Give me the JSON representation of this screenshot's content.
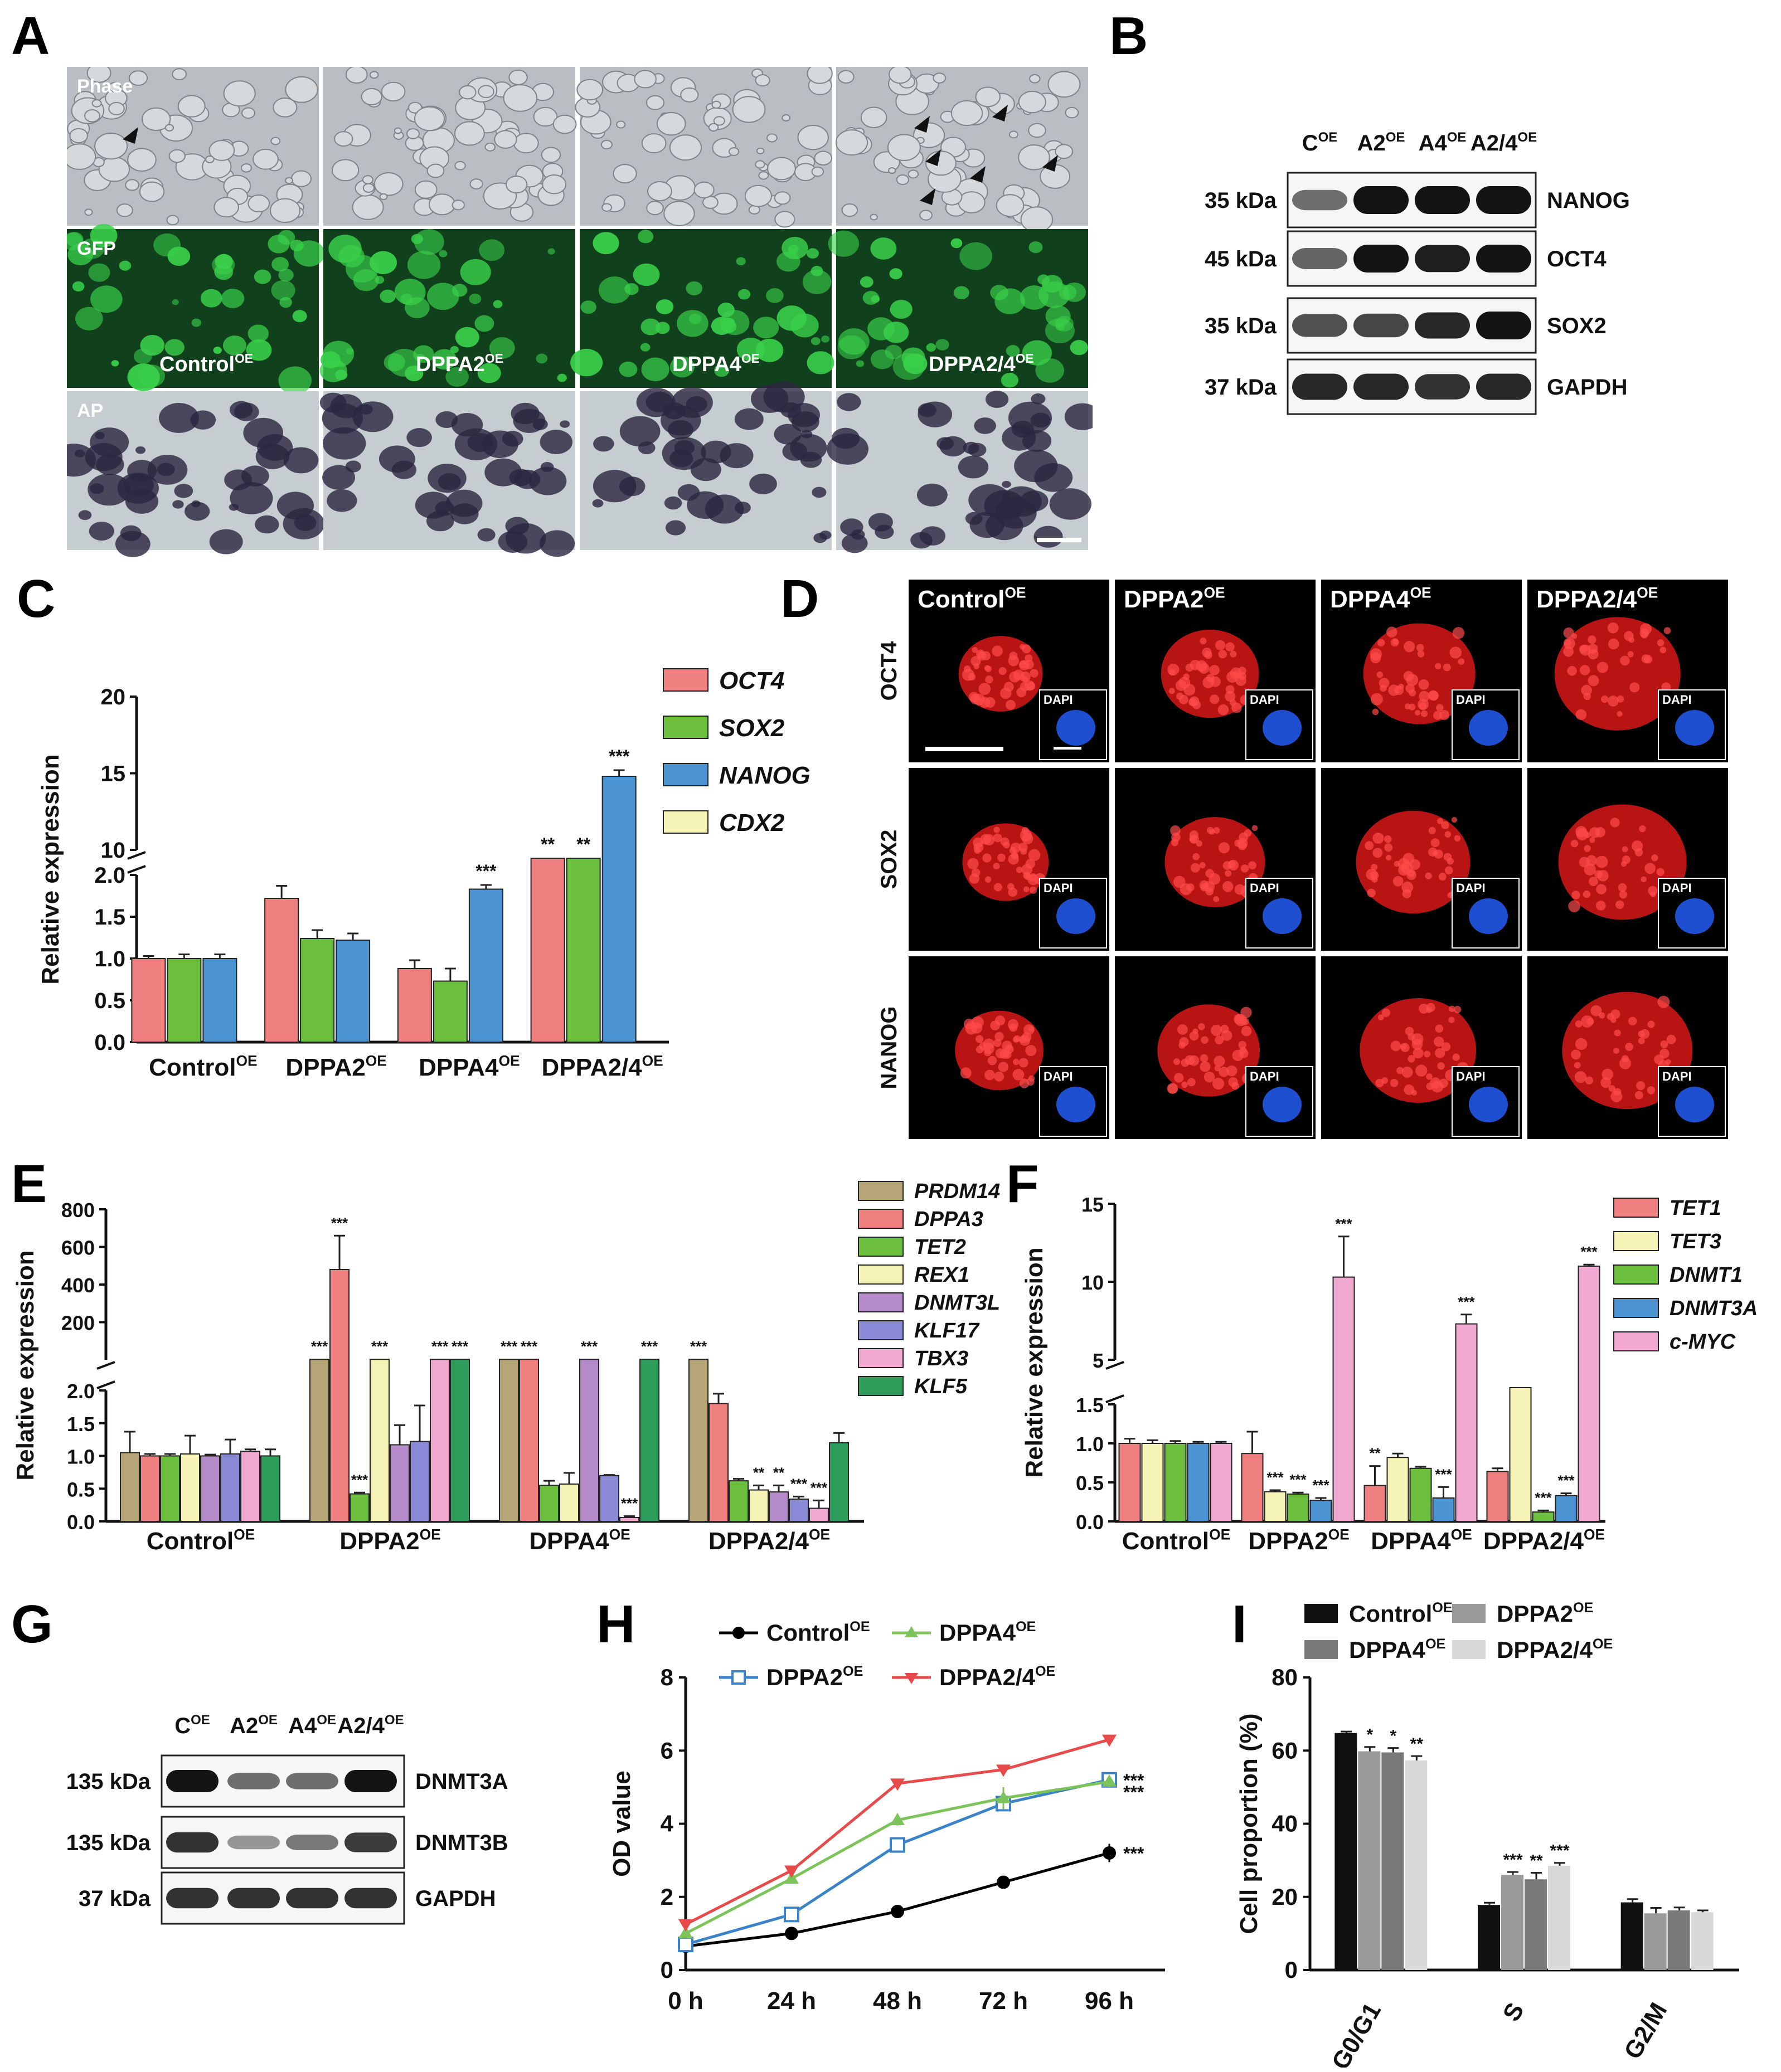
{
  "panel_letters": {
    "A": "A",
    "B": "B",
    "C": "C",
    "D": "D",
    "E": "E",
    "F": "F",
    "G": "G",
    "H": "H",
    "I": "I"
  },
  "panelA": {
    "row_labels": [
      "Phase",
      "GFP",
      "AP"
    ],
    "group_labels": [
      "Control",
      "DPPA2",
      "DPPA4",
      "DPPA2/4"
    ],
    "sup": "OE",
    "colors": {
      "phase": "#b9bec2",
      "gfp": "#10401c",
      "gfp_spot": "#39d04a",
      "ap": "#c6cdd0",
      "ap_spot": "#2b2540"
    }
  },
  "panelB": {
    "lanes": [
      {
        "base": "C",
        "sup": "OE"
      },
      {
        "base": "A2",
        "sup": "OE"
      },
      {
        "base": "A4",
        "sup": "OE"
      },
      {
        "base": "A2/4",
        "sup": "OE"
      }
    ],
    "rows": [
      {
        "kda": "35 kDa",
        "protein": "NANOG",
        "intensity": [
          0.55,
          1,
          1,
          1
        ]
      },
      {
        "kda": "45 kDa",
        "protein": "OCT4",
        "intensity": [
          0.6,
          1,
          0.95,
          1
        ]
      },
      {
        "kda": "35 kDa",
        "protein": "SOX2",
        "intensity": [
          0.7,
          0.75,
          0.9,
          1
        ]
      },
      {
        "kda": "37 kDa",
        "protein": "GAPDH",
        "intensity": [
          0.9,
          0.9,
          0.85,
          0.9
        ]
      }
    ]
  },
  "panelD": {
    "col_labels": [
      {
        "base": "Control",
        "sup": "OE"
      },
      {
        "base": "DPPA2",
        "sup": "OE"
      },
      {
        "base": "DPPA4",
        "sup": "OE"
      },
      {
        "base": "DPPA2/4",
        "sup": "OE"
      }
    ],
    "row_labels": [
      "OCT4",
      "SOX2",
      "NANOG"
    ],
    "inset_label": "DAPI"
  },
  "panelG": {
    "lanes": [
      {
        "base": "C",
        "sup": "OE"
      },
      {
        "base": "A2",
        "sup": "OE"
      },
      {
        "base": "A4",
        "sup": "OE"
      },
      {
        "base": "A2/4",
        "sup": "OE"
      }
    ],
    "rows": [
      {
        "kda": "135 kDa",
        "protein": "DNMT3A",
        "intensity": [
          1,
          0.55,
          0.55,
          1
        ]
      },
      {
        "kda": "135 kDa",
        "protein": "DNMT3B",
        "intensity": [
          0.85,
          0.35,
          0.5,
          0.8
        ]
      },
      {
        "kda": "37 kDa",
        "protein": "GAPDH",
        "intensity": [
          0.85,
          0.85,
          0.85,
          0.85
        ]
      }
    ]
  },
  "chart_data": [
    {
      "id": "C",
      "type": "bar",
      "ylabel": "Relative expression",
      "categories": [
        {
          "base": "Control",
          "sup": "OE"
        },
        {
          "base": "DPPA2",
          "sup": "OE"
        },
        {
          "base": "DPPA4",
          "sup": "OE"
        },
        {
          "base": "DPPA2/4",
          "sup": "OE"
        }
      ],
      "ylim_lower": [
        0,
        2.0
      ],
      "ylim_upper": [
        10,
        20
      ],
      "yticks_lower": [
        "0.0",
        "0.5",
        "1.0",
        "1.5",
        "2.0"
      ],
      "yticks_upper": [
        "10",
        "15",
        "20"
      ],
      "series": [
        {
          "name": "OCT4",
          "color": "#f08080",
          "values": [
            1.0,
            1.72,
            0.88,
            2.5
          ],
          "err": [
            0.03,
            0.15,
            0.1,
            0
          ],
          "sig": [
            "",
            "",
            "",
            "**"
          ]
        },
        {
          "name": "SOX2",
          "color": "#6cbf3c",
          "values": [
            1.0,
            1.24,
            0.73,
            2.5
          ],
          "err": [
            0.05,
            0.1,
            0.15,
            0
          ],
          "sig": [
            "",
            "",
            "",
            "**"
          ]
        },
        {
          "name": "NANOG",
          "color": "#4b93d1",
          "values": [
            1.0,
            1.22,
            1.83,
            14.8
          ],
          "err": [
            0.05,
            0.08,
            0.05,
            0.4
          ],
          "sig": [
            "",
            "",
            "***",
            "***"
          ]
        },
        {
          "name": "CDX2",
          "color": "#f5f3b5",
          "values": [
            null,
            null,
            null,
            null
          ],
          "err": [
            0,
            0,
            0,
            0
          ],
          "sig": [
            "",
            "",
            "",
            ""
          ]
        }
      ]
    },
    {
      "id": "E",
      "type": "bar",
      "ylabel": "Relative expression",
      "categories": [
        {
          "base": "Control",
          "sup": "OE"
        },
        {
          "base": "DPPA2",
          "sup": "OE"
        },
        {
          "base": "DPPA4",
          "sup": "OE"
        },
        {
          "base": "DPPA2/4",
          "sup": "OE"
        }
      ],
      "ylim_lower": [
        0,
        2.0
      ],
      "ylim_upper": [
        0,
        800
      ],
      "yticks_lower": [
        "0.0",
        "0.5",
        "1.0",
        "1.5",
        "2.0"
      ],
      "yticks_upper": [
        "200",
        "400",
        "600",
        "800"
      ],
      "series": [
        {
          "name": "PRDM14",
          "color": "#b5a577",
          "values": [
            1.05,
            2.5,
            2.5,
            2.5
          ],
          "err": [
            0.32,
            0,
            0,
            0
          ],
          "sig": [
            "",
            "***",
            "***",
            "***"
          ]
        },
        {
          "name": "DPPA3",
          "color": "#f08080",
          "values": [
            1.0,
            480,
            2.5,
            1.8
          ],
          "err": [
            0.03,
            180,
            0,
            0.15
          ],
          "sig": [
            "",
            "***",
            "***",
            ""
          ]
        },
        {
          "name": "TET2",
          "color": "#6cbf3c",
          "values": [
            1.0,
            0.42,
            0.55,
            0.62
          ],
          "err": [
            0.03,
            0.02,
            0.07,
            0.03
          ],
          "sig": [
            "",
            "***",
            "",
            ""
          ]
        },
        {
          "name": "REX1",
          "color": "#f5f3b5",
          "values": [
            1.03,
            2.5,
            0.57,
            0.48
          ],
          "err": [
            0.28,
            0,
            0.17,
            0.07
          ],
          "sig": [
            "",
            "***",
            "",
            "**"
          ]
        },
        {
          "name": "DNMT3L",
          "color": "#b48ac8",
          "values": [
            1.0,
            1.17,
            2.5,
            0.45
          ],
          "err": [
            0.02,
            0.3,
            0,
            0.1
          ],
          "sig": [
            "",
            "",
            "***",
            "**"
          ]
        },
        {
          "name": "KLF17",
          "color": "#8a8ad6",
          "values": [
            1.03,
            1.22,
            0.7,
            0.34
          ],
          "err": [
            0.22,
            0.55,
            0.01,
            0.04
          ],
          "sig": [
            "",
            "",
            "",
            "***"
          ]
        },
        {
          "name": "TBX3",
          "color": "#f0a8d0",
          "values": [
            1.07,
            2.5,
            0.06,
            0.2
          ],
          "err": [
            0.03,
            0,
            0.02,
            0.12
          ],
          "sig": [
            "",
            "***",
            "***",
            "***"
          ]
        },
        {
          "name": "KLF5",
          "color": "#2f9e5c",
          "values": [
            1.0,
            2.5,
            2.5,
            1.2
          ],
          "err": [
            0.1,
            0,
            0,
            0.15
          ],
          "sig": [
            "",
            "***",
            "***",
            ""
          ]
        }
      ]
    },
    {
      "id": "F",
      "type": "bar",
      "ylabel": "Relative expression",
      "categories": [
        {
          "base": "Control",
          "sup": "OE"
        },
        {
          "base": "DPPA2",
          "sup": "OE"
        },
        {
          "base": "DPPA4",
          "sup": "OE"
        },
        {
          "base": "DPPA2/4",
          "sup": "OE"
        }
      ],
      "ylim_lower": [
        0,
        1.5
      ],
      "ylim_upper": [
        5,
        15
      ],
      "yticks_lower": [
        "0.0",
        "0.5",
        "1.0",
        "1.5"
      ],
      "yticks_upper": [
        "5",
        "10",
        "15"
      ],
      "series": [
        {
          "name": "TET1",
          "color": "#f08080",
          "values": [
            1.0,
            0.87,
            0.46,
            0.64
          ],
          "err": [
            0.06,
            0.28,
            0.25,
            0.04
          ],
          "sig": [
            "",
            "",
            "**",
            ""
          ]
        },
        {
          "name": "TET3",
          "color": "#f5f3b5",
          "values": [
            1.0,
            0.38,
            0.82,
            1.8
          ],
          "err": [
            0.04,
            0.02,
            0.05,
            0
          ],
          "sig": [
            "",
            "***",
            "",
            ""
          ]
        },
        {
          "name": "DNMT1",
          "color": "#6cbf3c",
          "values": [
            1.0,
            0.35,
            0.68,
            0.12
          ],
          "err": [
            0.03,
            0.02,
            0.02,
            0.02
          ],
          "sig": [
            "",
            "***",
            "",
            "***"
          ]
        },
        {
          "name": "DNMT3A",
          "color": "#4b93d1",
          "values": [
            1.0,
            0.27,
            0.3,
            0.33
          ],
          "err": [
            0.02,
            0.03,
            0.14,
            0.03
          ],
          "sig": [
            "",
            "***",
            "***",
            "***"
          ]
        },
        {
          "name": "c-MYC",
          "color": "#f0a8d0",
          "values": [
            1.0,
            10.3,
            7.3,
            11.0
          ],
          "err": [
            0.02,
            2.6,
            0.6,
            0.1
          ],
          "sig": [
            "",
            "***",
            "***",
            "***"
          ]
        }
      ]
    },
    {
      "id": "H",
      "type": "line",
      "ylabel": "OD value",
      "x": [
        "0 h",
        "24 h",
        "48 h",
        "72 h",
        "96 h"
      ],
      "ylim": [
        0,
        8
      ],
      "yticks": [
        "0",
        "2",
        "4",
        "6",
        "8"
      ],
      "series": [
        {
          "name": "Control",
          "sup": "OE",
          "color": "#000000",
          "marker": "circle",
          "values": [
            0.65,
            1.0,
            1.6,
            2.4,
            3.2
          ],
          "err": [
            0.05,
            0.05,
            0.1,
            0.12,
            0.25
          ]
        },
        {
          "name": "DPPA2",
          "sup": "OE",
          "color": "#3b83c9",
          "marker": "square-open",
          "values": [
            0.7,
            1.52,
            3.42,
            4.55,
            5.2
          ],
          "err": [
            0.05,
            0.08,
            0.2,
            0.15,
            0.1
          ]
        },
        {
          "name": "DPPA4",
          "sup": "OE",
          "color": "#7cc35a",
          "marker": "triangle-up",
          "values": [
            1.0,
            2.5,
            4.1,
            4.7,
            5.15
          ],
          "err": [
            0.05,
            0.12,
            0.15,
            0.3,
            0.15
          ]
        },
        {
          "name": "DPPA2/4",
          "sup": "OE",
          "color": "#e84a4a",
          "marker": "triangle-down",
          "values": [
            1.25,
            2.72,
            5.1,
            5.48,
            6.3
          ],
          "err": [
            0.05,
            0.08,
            0.08,
            0.05,
            0.05
          ]
        }
      ],
      "annotations": [
        "***",
        "***",
        "***"
      ]
    },
    {
      "id": "I",
      "type": "bar",
      "ylabel": "Cell proportion (%)",
      "categories": [
        "G0/G1",
        "S",
        "G2/M"
      ],
      "ylim": [
        0,
        80
      ],
      "yticks": [
        "0",
        "20",
        "40",
        "60",
        "80"
      ],
      "series": [
        {
          "name": "Control",
          "sup": "OE",
          "color": "#111111",
          "values": [
            64.8,
            17.8,
            18.5
          ],
          "err": [
            0.4,
            0.6,
            0.9
          ],
          "sig": [
            "",
            "",
            ""
          ]
        },
        {
          "name": "DPPA2",
          "sup": "OE",
          "color": "#9a9a9a",
          "values": [
            59.8,
            26.0,
            15.5
          ],
          "err": [
            1.2,
            0.8,
            1.5
          ],
          "sig": [
            "*",
            "***",
            ""
          ]
        },
        {
          "name": "DPPA4",
          "sup": "OE",
          "color": "#7a7a7a",
          "values": [
            59.5,
            24.8,
            16.3
          ],
          "err": [
            1.2,
            1.8,
            0.8
          ],
          "sig": [
            "*",
            "**",
            ""
          ]
        },
        {
          "name": "DPPA2/4",
          "sup": "OE",
          "color": "#d8d8d8",
          "values": [
            57.3,
            28.5,
            15.8
          ],
          "err": [
            1.2,
            0.8,
            0.5
          ],
          "sig": [
            "**",
            "***",
            ""
          ]
        }
      ]
    }
  ]
}
